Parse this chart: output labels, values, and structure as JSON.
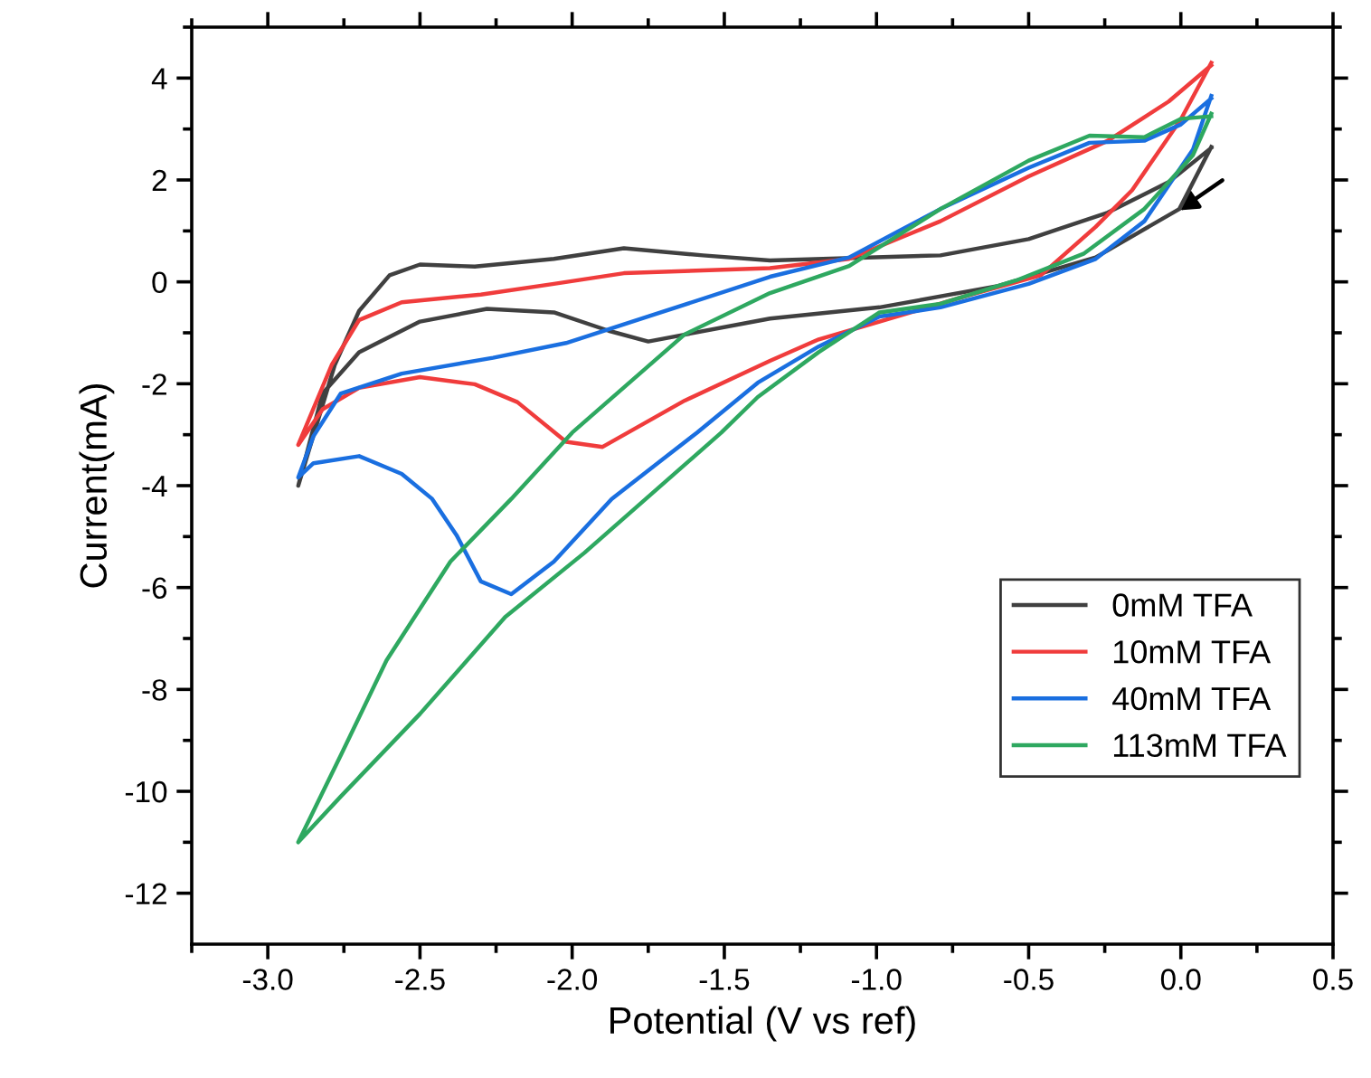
{
  "chart_data": {
    "type": "line",
    "xlabel": "Potential (V vs ref)",
    "ylabel": "Current(mA)",
    "xlim": [
      -3.25,
      0.5
    ],
    "ylim": [
      -13,
      5
    ],
    "xticks": [
      {
        "value": -3,
        "label": "-3.0"
      },
      -2.5,
      {
        "value": -2,
        "label": "-2.0"
      },
      -1.5,
      {
        "value": -1,
        "label": "-1.0"
      },
      -0.5,
      {
        "value": 0,
        "label": "0.0"
      },
      0.5
    ],
    "yticks": [
      -12,
      -10,
      -8,
      -6,
      -4,
      -2,
      0,
      2,
      4
    ],
    "grid": false,
    "legend": "bottom right",
    "marker": "none",
    "line_style": "solid",
    "series": [
      {
        "name": "0mM TFA",
        "color": "#404040",
        "x": [
          0.1,
          -0.005,
          -0.28,
          -0.6,
          -0.99,
          -1.35,
          -1.75,
          -1.88,
          -2.06,
          -2.28,
          -2.5,
          -2.7,
          -2.82,
          -2.9,
          -2.78,
          -2.7,
          -2.6,
          -2.5,
          -2.32,
          -2.06,
          -1.83,
          -1.57,
          -1.35,
          -0.79,
          -0.5,
          -0.24,
          -0.04,
          0.1
        ],
        "values": [
          2.65,
          1.43,
          0.48,
          -0.08,
          -0.5,
          -0.72,
          -1.17,
          -0.96,
          -0.6,
          -0.53,
          -0.78,
          -1.38,
          -2.19,
          -4.0,
          -1.63,
          -0.57,
          0.13,
          0.34,
          0.3,
          0.45,
          0.66,
          0.52,
          0.42,
          0.52,
          0.84,
          1.36,
          1.96,
          2.63
        ]
      },
      {
        "name": "10mM TFA",
        "color": "#f03c3c",
        "x": [
          0.1,
          0.0,
          -0.16,
          -0.28,
          -0.46,
          -0.69,
          -0.99,
          -1.19,
          -1.35,
          -1.63,
          -1.9,
          -2.02,
          -2.18,
          -2.32,
          -2.5,
          -2.7,
          -2.82,
          -2.9,
          -2.79,
          -2.7,
          -2.56,
          -2.3,
          -2.06,
          -1.83,
          -1.35,
          -1.09,
          -0.79,
          -0.5,
          -0.24,
          -0.04,
          0.1
        ],
        "values": [
          4.3,
          3.19,
          1.8,
          1.08,
          0.13,
          -0.25,
          -0.78,
          -1.13,
          -1.55,
          -2.33,
          -3.24,
          -3.14,
          -2.36,
          -2.01,
          -1.87,
          -2.08,
          -2.5,
          -3.2,
          -1.63,
          -0.75,
          -0.4,
          -0.25,
          -0.04,
          0.17,
          0.27,
          0.45,
          1.19,
          2.07,
          2.77,
          3.54,
          4.25
        ]
      },
      {
        "name": "40mM TFA",
        "color": "#1a6fe0",
        "x": [
          0.1,
          0.04,
          -0.12,
          -0.28,
          -0.5,
          -0.79,
          -0.99,
          -1.19,
          -1.39,
          -1.59,
          -1.87,
          -2.06,
          -2.2,
          -2.3,
          -2.38,
          -2.46,
          -2.56,
          -2.7,
          -2.85,
          -2.9,
          -2.85,
          -2.76,
          -2.56,
          -2.26,
          -2.02,
          -1.75,
          -1.35,
          -1.09,
          -0.79,
          -0.5,
          -0.3,
          -0.12,
          0.0,
          0.1
        ],
        "values": [
          3.65,
          2.6,
          1.19,
          0.45,
          -0.04,
          -0.5,
          -0.68,
          -1.27,
          -1.98,
          -2.96,
          -4.26,
          -5.49,
          -6.13,
          -5.88,
          -4.97,
          -4.26,
          -3.77,
          -3.42,
          -3.56,
          -3.84,
          -3.03,
          -2.19,
          -1.8,
          -1.49,
          -1.2,
          -0.68,
          0.1,
          0.48,
          1.43,
          2.24,
          2.73,
          2.77,
          3.09,
          3.6
        ]
      },
      {
        "name": "113mM TFA",
        "color": "#2ea860",
        "x": [
          0.1,
          0.04,
          -0.12,
          -0.32,
          -0.54,
          -0.79,
          -0.99,
          -1.19,
          -1.39,
          -1.51,
          -1.96,
          -2.22,
          -2.5,
          -2.76,
          -2.9,
          -2.76,
          -2.61,
          -2.4,
          -2.2,
          -2.0,
          -1.63,
          -1.35,
          -1.09,
          -0.79,
          -0.5,
          -0.3,
          -0.12,
          0.0,
          0.1
        ],
        "values": [
          3.3,
          2.49,
          1.43,
          0.55,
          0.03,
          -0.43,
          -0.6,
          -1.38,
          -2.26,
          -2.96,
          -5.32,
          -6.58,
          -8.48,
          -10.1,
          -11.0,
          -9.29,
          -7.43,
          -5.49,
          -4.26,
          -2.96,
          -1.03,
          -0.22,
          0.31,
          1.43,
          2.38,
          2.87,
          2.84,
          3.2,
          3.25
        ]
      }
    ]
  }
}
